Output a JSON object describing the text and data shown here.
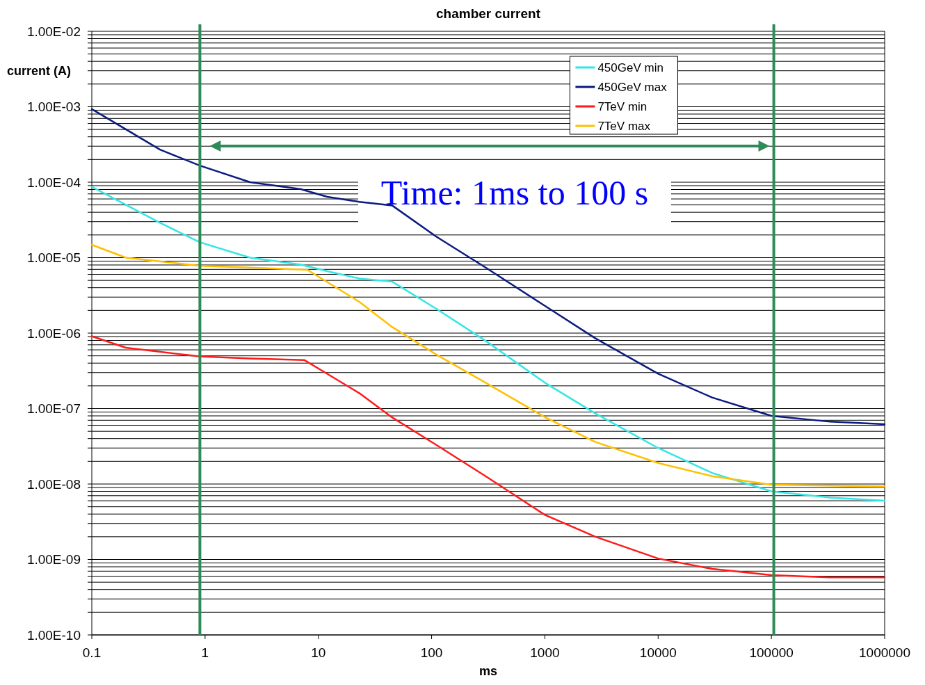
{
  "chart_data": {
    "type": "line",
    "title": "chamber current",
    "xlabel": "ms",
    "ylabel": "current (A)",
    "log": "xy",
    "grid": "y",
    "legend": "top right",
    "line_style": "solid",
    "marker": "none",
    "xlim": [
      0.1,
      1000000
    ],
    "xticks": [
      0.1,
      1,
      10,
      100,
      1000,
      10000,
      100000,
      1000000
    ],
    "ylim": [
      1e-10,
      0.01
    ],
    "yticks": [
      {
        "value": 1e-10,
        "label": "1.00E-10"
      },
      {
        "value": 2e-10,
        "label": null
      },
      {
        "value": 3e-10,
        "label": null
      },
      {
        "value": 4e-10,
        "label": null
      },
      {
        "value": 5e-10,
        "label": null
      },
      {
        "value": 6e-10,
        "label": null
      },
      {
        "value": 7e-10,
        "label": null
      },
      {
        "value": 8e-10,
        "label": null
      },
      {
        "value": 9e-10,
        "label": null
      },
      {
        "value": 1e-09,
        "label": "1.00E-09"
      },
      {
        "value": 2e-09,
        "label": null
      },
      {
        "value": 3e-09,
        "label": null
      },
      {
        "value": 4e-09,
        "label": null
      },
      {
        "value": 5e-09,
        "label": null
      },
      {
        "value": 6e-09,
        "label": null
      },
      {
        "value": 7e-09,
        "label": null
      },
      {
        "value": 8e-09,
        "label": null
      },
      {
        "value": 9e-09,
        "label": null
      },
      {
        "value": 1e-08,
        "label": "1.00E-08"
      },
      {
        "value": 2e-08,
        "label": null
      },
      {
        "value": 3e-08,
        "label": null
      },
      {
        "value": 4e-08,
        "label": null
      },
      {
        "value": 5e-08,
        "label": null
      },
      {
        "value": 6e-08,
        "label": null
      },
      {
        "value": 7e-08,
        "label": null
      },
      {
        "value": 8e-08,
        "label": null
      },
      {
        "value": 9e-08,
        "label": null
      },
      {
        "value": 1e-07,
        "label": "1.00E-07"
      },
      {
        "value": 2e-07,
        "label": null
      },
      {
        "value": 3e-07,
        "label": null
      },
      {
        "value": 4e-07,
        "label": null
      },
      {
        "value": 5e-07,
        "label": null
      },
      {
        "value": 6e-07,
        "label": null
      },
      {
        "value": 7e-07,
        "label": null
      },
      {
        "value": 8e-07,
        "label": null
      },
      {
        "value": 9e-07,
        "label": null
      },
      {
        "value": 1e-06,
        "label": "1.00E-06"
      },
      {
        "value": 2e-06,
        "label": null
      },
      {
        "value": 3e-06,
        "label": null
      },
      {
        "value": 4e-06,
        "label": null
      },
      {
        "value": 5e-06,
        "label": null
      },
      {
        "value": 6e-06,
        "label": null
      },
      {
        "value": 7e-06,
        "label": null
      },
      {
        "value": 8e-06,
        "label": null
      },
      {
        "value": 9e-06,
        "label": null
      },
      {
        "value": 1e-05,
        "label": "1.00E-05"
      },
      {
        "value": 2e-05,
        "label": null
      },
      {
        "value": 3e-05,
        "label": null
      },
      {
        "value": 4e-05,
        "label": null
      },
      {
        "value": 5e-05,
        "label": null
      },
      {
        "value": 6e-05,
        "label": null
      },
      {
        "value": 7e-05,
        "label": null
      },
      {
        "value": 8e-05,
        "label": null
      },
      {
        "value": 9e-05,
        "label": null
      },
      {
        "value": 0.0001,
        "label": "1.00E-04"
      },
      {
        "value": 0.0002,
        "label": null
      },
      {
        "value": 0.0003,
        "label": null
      },
      {
        "value": 0.0004,
        "label": null
      },
      {
        "value": 0.0005,
        "label": null
      },
      {
        "value": 0.0006,
        "label": null
      },
      {
        "value": 0.0007,
        "label": null
      },
      {
        "value": 0.0008,
        "label": null
      },
      {
        "value": 0.0009,
        "label": null
      },
      {
        "value": 0.001,
        "label": "1.00E-03"
      },
      {
        "value": 0.002,
        "label": null
      },
      {
        "value": 0.003,
        "label": null
      },
      {
        "value": 0.004,
        "label": null
      },
      {
        "value": 0.005,
        "label": null
      },
      {
        "value": 0.006,
        "label": null
      },
      {
        "value": 0.007,
        "label": null
      },
      {
        "value": 0.008,
        "label": null
      },
      {
        "value": 0.009,
        "label": null
      },
      {
        "value": 0.01,
        "label": "1.00E-02"
      }
    ],
    "series": [
      {
        "name": "450GeV min",
        "color": "#33e6e6",
        "x": [
          0.1,
          0.4,
          0.9,
          2.5,
          7,
          12,
          23,
          45,
          110,
          300,
          1000,
          2800,
          10000,
          30000,
          100000,
          330000,
          1000000
        ],
        "values": [
          8.7e-05,
          2.9e-05,
          1.6e-05,
          1e-05,
          8.1e-06,
          6.6e-06,
          5.3e-06,
          4.8e-06,
          2.1e-06,
          7.9e-07,
          2.2e-07,
          8.6e-08,
          3e-08,
          1.4e-08,
          8e-09,
          6.6e-09,
          6e-09
        ]
      },
      {
        "name": "450GeV max",
        "color": "#0a1a80",
        "x": [
          0.1,
          0.4,
          0.9,
          2.5,
          7,
          12,
          23,
          45,
          110,
          300,
          1000,
          2800,
          10000,
          30000,
          100000,
          330000,
          1000000
        ],
        "values": [
          0.00093,
          0.00027,
          0.000166,
          0.0001,
          8.1e-05,
          6.4e-05,
          5.5e-05,
          4.9e-05,
          1.9e-05,
          7.4e-06,
          2.3e-06,
          8.5e-07,
          2.9e-07,
          1.4e-07,
          8e-08,
          6.7e-08,
          6.2e-08
        ]
      },
      {
        "name": "7TeV min",
        "color": "#ff1a1a",
        "x": [
          0.1,
          0.2,
          0.9,
          2.5,
          7.5,
          11.5,
          23,
          45,
          110,
          300,
          1000,
          2800,
          10000,
          30000,
          100000,
          330000,
          1000000
        ],
        "values": [
          9.1e-07,
          6.4e-07,
          4.9e-07,
          4.6e-07,
          4.4e-07,
          3e-07,
          1.6e-07,
          7.6e-08,
          3.3e-08,
          1.27e-08,
          3.9e-09,
          2e-09,
          1.03e-09,
          7.5e-10,
          6.2e-10,
          5.8e-10,
          5.8e-10
        ]
      },
      {
        "name": "7TeV max",
        "color": "#ffc000",
        "x": [
          0.1,
          0.2,
          0.9,
          2.5,
          8,
          23,
          45,
          110,
          300,
          1000,
          2800,
          10000,
          30000,
          100000,
          1000000
        ],
        "values": [
          1.48e-05,
          1e-05,
          7.8e-06,
          7.4e-06,
          6.9e-06,
          2.6e-06,
          1.2e-06,
          5.2e-07,
          2.2e-07,
          7.7e-08,
          3.6e-08,
          1.9e-08,
          1.27e-08,
          9.8e-09,
          9.3e-09
        ]
      }
    ],
    "ref_lines": [
      {
        "axis": "x",
        "value": 0.9,
        "color": "#2e8b57"
      },
      {
        "axis": "x",
        "value": 105000,
        "color": "#2e8b57"
      }
    ],
    "annotations": [
      "Time: 1ms to 100 s"
    ]
  }
}
